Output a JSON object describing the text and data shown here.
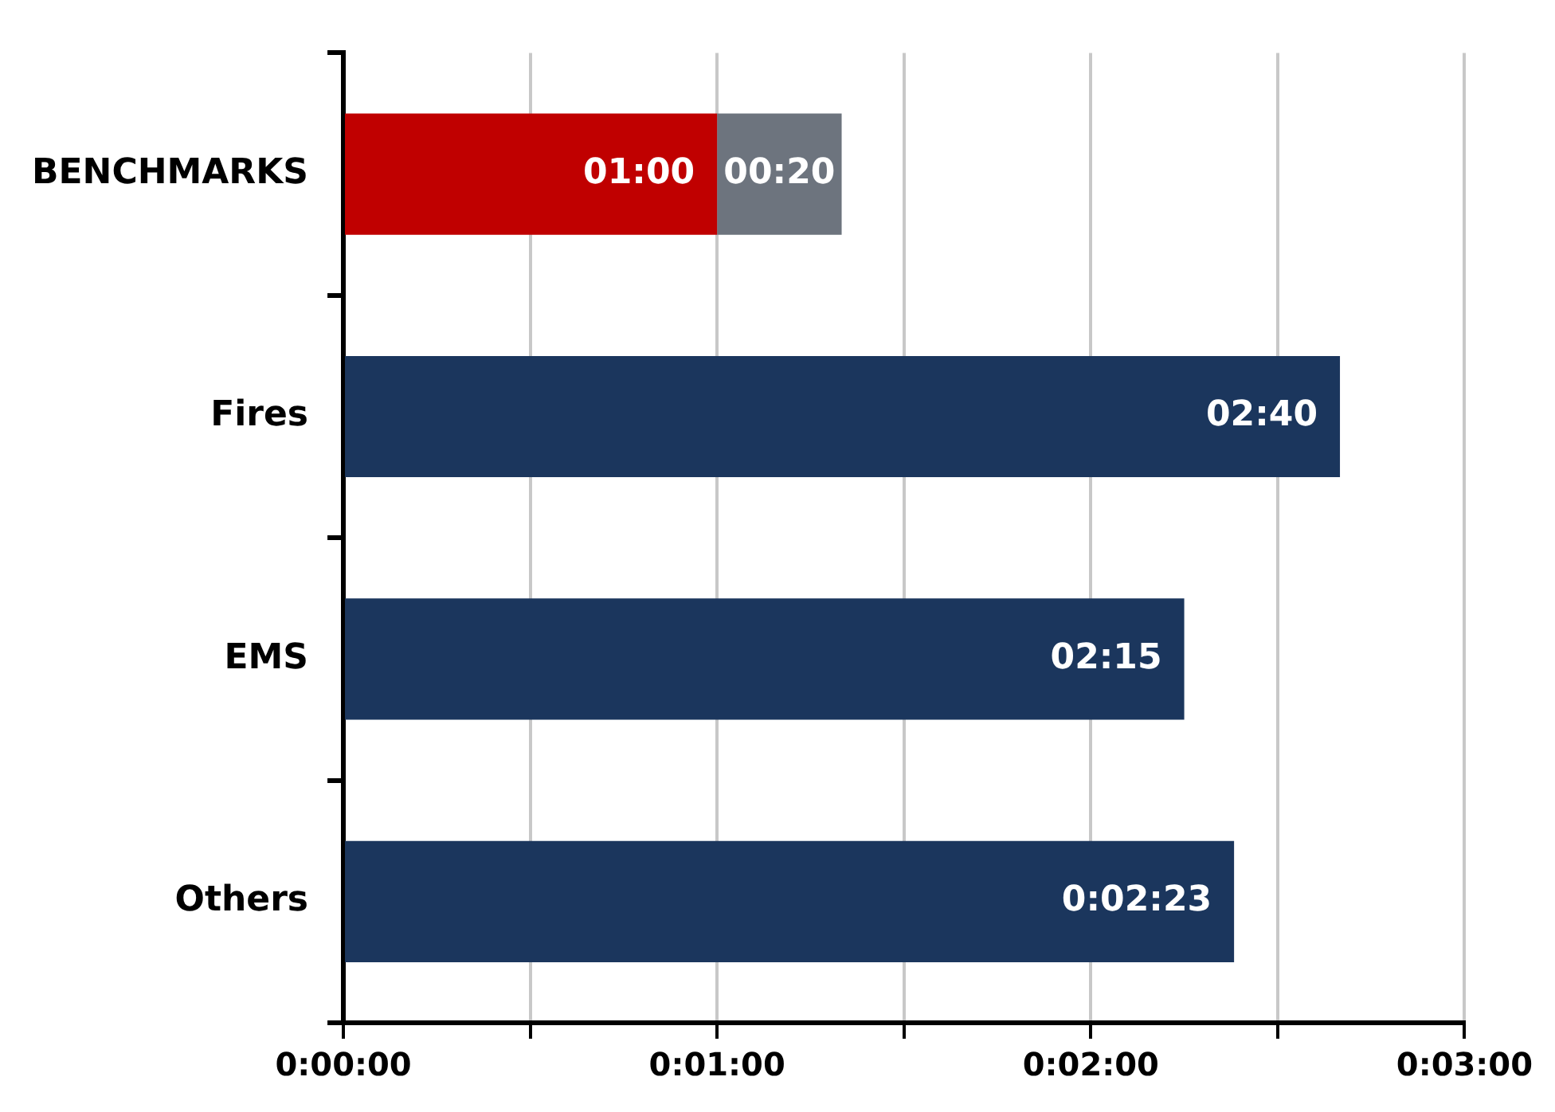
{
  "chart_data": {
    "type": "bar",
    "orientation": "horizontal",
    "stacked": true,
    "categories": [
      "BENCHMARKS",
      "Fires",
      "EMS",
      "Others"
    ],
    "series": [
      {
        "values": [
          60,
          160,
          135,
          143
        ],
        "colors": [
          "#c00000",
          "#1b365d",
          "#1b365d",
          "#1b365d"
        ],
        "value_labels": [
          "01:00",
          "02:40",
          "02:15",
          "0:02:23"
        ]
      },
      {
        "values": [
          20,
          null,
          null,
          null
        ],
        "color": "#6d747e",
        "value_labels": [
          "00:20",
          null,
          null,
          null
        ]
      }
    ],
    "xlim": [
      0,
      180
    ],
    "xticks": [
      {
        "value": 0,
        "label": "0:00:00"
      },
      {
        "value": 30,
        "label": null
      },
      {
        "value": 60,
        "label": "0:01:00"
      },
      {
        "value": 90,
        "label": null
      },
      {
        "value": 120,
        "label": "0:02:00"
      },
      {
        "value": 150,
        "label": null
      },
      {
        "value": 180,
        "label": "0:03:00"
      }
    ],
    "grid": "x",
    "legend": false
  }
}
